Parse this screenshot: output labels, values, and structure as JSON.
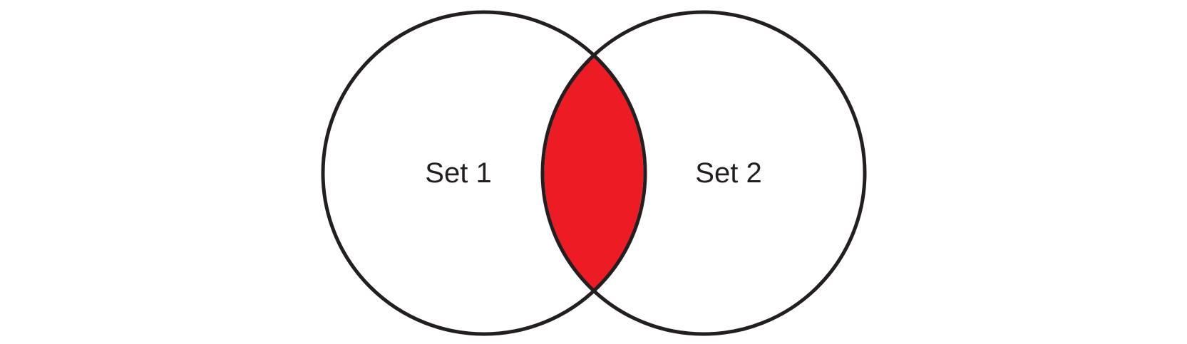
{
  "diagram": {
    "type": "venn",
    "sets": [
      {
        "label": "Set 1"
      },
      {
        "label": "Set 2"
      }
    ],
    "highlighted_region": "intersection",
    "colors": {
      "outline": "#231f20",
      "highlight": "#ed1c24",
      "background": "#ffffff"
    }
  }
}
